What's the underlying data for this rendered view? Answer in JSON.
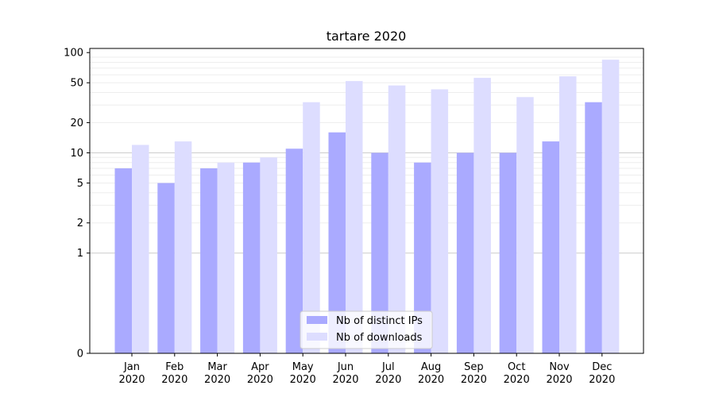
{
  "chart_data": {
    "type": "bar",
    "title": "tartare 2020",
    "xlabel": "",
    "ylabel": "",
    "yscale": "symlog",
    "ylim": [
      0,
      110
    ],
    "yticks": [
      0,
      1,
      2,
      5,
      10,
      20,
      50,
      100
    ],
    "ytick_labels": [
      "0",
      "1",
      "2",
      "5",
      "10",
      "20",
      "50",
      "100"
    ],
    "categories": [
      "Jan 2020",
      "Feb 2020",
      "Mar 2020",
      "Apr 2020",
      "May 2020",
      "Jun 2020",
      "Jul 2020",
      "Aug 2020",
      "Sep 2020",
      "Oct 2020",
      "Nov 2020",
      "Dec 2020"
    ],
    "category_lines": [
      [
        "Jan",
        "2020"
      ],
      [
        "Feb",
        "2020"
      ],
      [
        "Mar",
        "2020"
      ],
      [
        "Apr",
        "2020"
      ],
      [
        "May",
        "2020"
      ],
      [
        "Jun",
        "2020"
      ],
      [
        "Jul",
        "2020"
      ],
      [
        "Aug",
        "2020"
      ],
      [
        "Sep",
        "2020"
      ],
      [
        "Oct",
        "2020"
      ],
      [
        "Nov",
        "2020"
      ],
      [
        "Dec",
        "2020"
      ]
    ],
    "series": [
      {
        "name": "Nb of distinct IPs",
        "color": "#aaaaff",
        "values": [
          7,
          5,
          7,
          8,
          11,
          16,
          10,
          8,
          10,
          10,
          13,
          32
        ]
      },
      {
        "name": "Nb of downloads",
        "color": "#ddddff",
        "values": [
          12,
          13,
          8,
          9,
          32,
          52,
          47,
          43,
          56,
          36,
          58,
          85
        ]
      }
    ],
    "legend_position": "lower center",
    "grid": "major and minor horizontal lines"
  }
}
